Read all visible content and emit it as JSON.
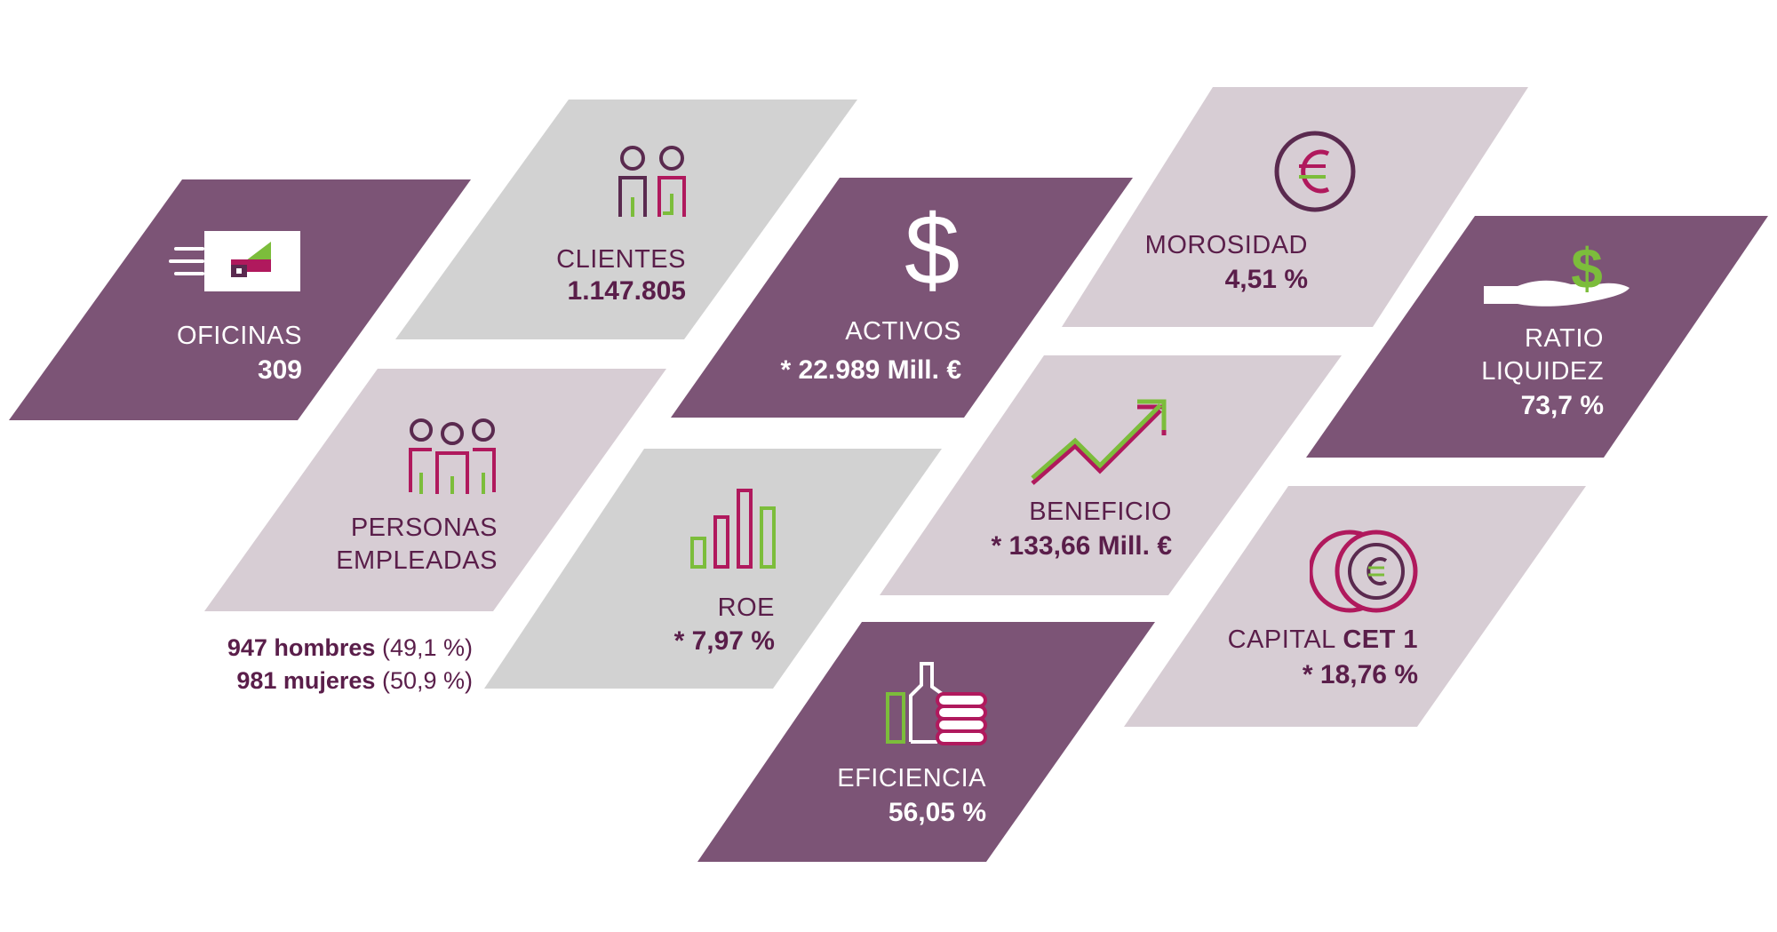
{
  "colors": {
    "plum": "#7c5476",
    "mauve_light": "#d7cdd4",
    "grey_light": "#d2d2d2",
    "white": "#ffffff",
    "dark_text": "#5a1e4a",
    "magenta": "#b0195d",
    "green": "#7cbd3b",
    "purple_icon": "#5a2a4f"
  },
  "tiles": {
    "oficinas": {
      "label": "OFICINAS",
      "value": "309",
      "icon": "building-flag-icon"
    },
    "clientes": {
      "label": "CLIENTES",
      "value": "1.147.805",
      "icon": "two-people-icon"
    },
    "activos": {
      "label": "ACTIVOS",
      "value": "* 22.989 Mill. €",
      "icon": "dollar-icon"
    },
    "morosidad": {
      "label": "MOROSIDAD",
      "value": "4,51 %",
      "icon": "euro-circle-icon"
    },
    "ratio": {
      "label_line1": "RATIO",
      "label_line2": "LIQUIDEZ",
      "value": "73,7 %",
      "icon": "hand-dollar-icon"
    },
    "personas": {
      "label_line1": "PERSONAS",
      "label_line2": "EMPLEADAS",
      "icon": "group-people-icon"
    },
    "roe": {
      "label": "ROE",
      "value": "* 7,97 %",
      "icon": "bar-chart-icon"
    },
    "beneficio": {
      "label": "BENEFICIO",
      "value": "* 133,66 Mill. €",
      "icon": "rising-arrow-icon"
    },
    "capital": {
      "label": "CAPITAL",
      "label_bold": "CET 1",
      "value": "* 18,76 %",
      "icon": "euro-coins-icon"
    },
    "eficiencia": {
      "label": "EFICIENCIA",
      "value": "56,05 %",
      "icon": "thumbs-up-icon"
    }
  },
  "empleados": {
    "hombres_bold": "947 hombres",
    "hombres_pct": "(49,1 %)",
    "mujeres_bold": "981 mujeres",
    "mujeres_pct": "(50,9 %)"
  }
}
